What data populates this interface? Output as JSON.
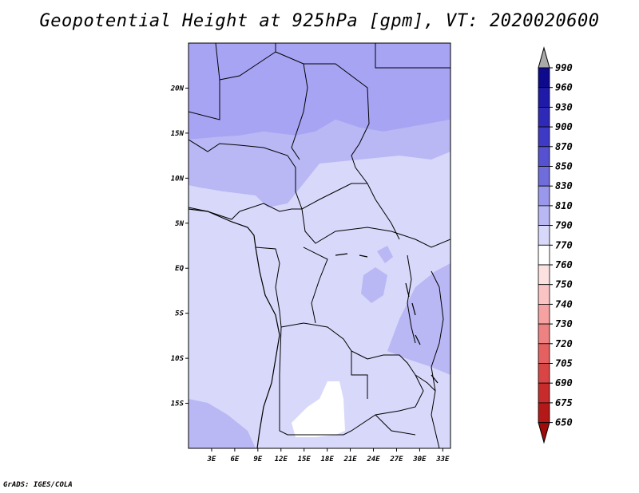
{
  "title": "Geopotential Height at 925hPa [gpm], VT: 2020020600",
  "footer": "GrADS: IGES/COLA",
  "map": {
    "lon_range": [
      0,
      34
    ],
    "lat_range": [
      -20,
      25
    ],
    "x_ticks": [
      "3E",
      "6E",
      "9E",
      "12E",
      "15E",
      "18E",
      "21E",
      "24E",
      "27E",
      "30E",
      "33E"
    ],
    "y_ticks": [
      "20N",
      "15N",
      "10N",
      "5N",
      "EQ",
      "5S",
      "10S",
      "15S"
    ],
    "background_level": "770-790"
  },
  "colorbar": {
    "levels": [
      "990",
      "960",
      "930",
      "900",
      "870",
      "850",
      "830",
      "810",
      "790",
      "770",
      "760",
      "750",
      "740",
      "730",
      "720",
      "705",
      "690",
      "675",
      "650"
    ],
    "colors": [
      "#aaaaaa",
      "#0d0a8e",
      "#1f1aa8",
      "#2f29b8",
      "#3f3ac6",
      "#5551d0",
      "#6f6cdc",
      "#9a98ec",
      "#b9b7f4",
      "#d8d8fa",
      "#ffffff",
      "#fde1e1",
      "#fbc4c4",
      "#f6a2a2",
      "#ee8282",
      "#e56161",
      "#d94545",
      "#c82b2b",
      "#b51818",
      "#9e0b0b"
    ]
  },
  "fills": {
    "far_north": "#a8a4f4",
    "north": "#b9b7f4",
    "mid": "#d8d8fa",
    "low": "#ffffff"
  }
}
